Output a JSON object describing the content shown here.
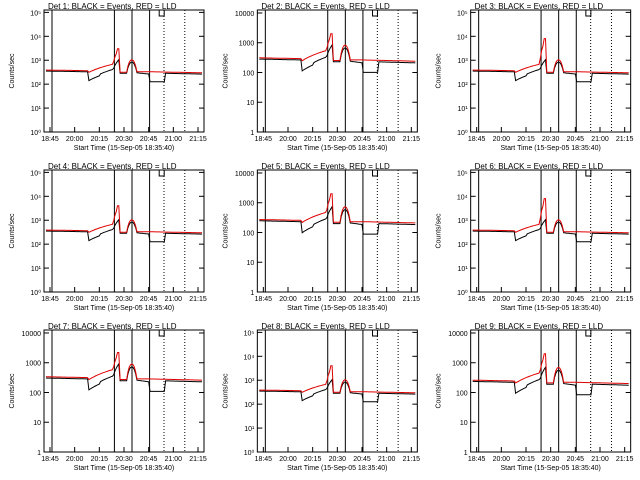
{
  "colors": {
    "events": "#000000",
    "lld": "#e00000",
    "frame": "#000000"
  },
  "xticks": [
    "18:45",
    "20:00",
    "20:15",
    "20:30",
    "20:45",
    "21:00",
    "21:15"
  ],
  "xlabel": "Start Time (15-Sep-05 18:35:40)",
  "ylabel": "Counts/sec",
  "chart_data": [
    {
      "type": "line",
      "title": "Det 1: BLACK = Events, RED = LLD",
      "yscale": "log",
      "yticks": [
        "10⁰",
        "10¹",
        "10²",
        "10³",
        "10⁴",
        "10⁵"
      ],
      "ylim_exp": [
        0,
        5.1
      ],
      "base": 300,
      "peak": 3000,
      "vlines": [
        0.245,
        0.64
      ],
      "series": [
        {
          "name": "Events",
          "color": "#000000"
        },
        {
          "name": "LLD",
          "color": "#e00000"
        }
      ]
    },
    {
      "type": "line",
      "title": "Det 2: BLACK = Events, RED = LLD",
      "yscale": "log",
      "yticks": [
        "1",
        "10",
        "100",
        "1000",
        "10000"
      ],
      "ylim_exp": [
        0,
        4.1
      ],
      "base": 240,
      "peak": 2000,
      "vlines": [
        0.245,
        0.64
      ],
      "series": [
        {
          "name": "Events",
          "color": "#000000"
        },
        {
          "name": "LLD",
          "color": "#e00000"
        }
      ]
    },
    {
      "type": "line",
      "title": "Det 3: BLACK = Events, RED = LLD",
      "yscale": "log",
      "yticks": [
        "10⁰",
        "10¹",
        "10²",
        "10³",
        "10⁴",
        "10⁵"
      ],
      "ylim_exp": [
        0,
        5.1
      ],
      "base": 300,
      "peak": 8000,
      "vlines": [
        0.245,
        0.64
      ],
      "series": [
        {
          "name": "Events",
          "color": "#000000"
        },
        {
          "name": "LLD",
          "color": "#e00000"
        }
      ]
    },
    {
      "type": "line",
      "title": "Det 4: BLACK = Events, RED = LLD",
      "yscale": "log",
      "yticks": [
        "10⁰",
        "10¹",
        "10²",
        "10³",
        "10⁴",
        "10⁵"
      ],
      "ylim_exp": [
        0,
        5.1
      ],
      "base": 300,
      "peak": 4000,
      "vlines": [
        0.245,
        0.64
      ],
      "series": [
        {
          "name": "Events",
          "color": "#000000"
        },
        {
          "name": "LLD",
          "color": "#e00000"
        }
      ]
    },
    {
      "type": "line",
      "title": "Det 5: BLACK = Events, RED = LLD",
      "yscale": "log",
      "yticks": [
        "1",
        "10",
        "100",
        "1000",
        "10000"
      ],
      "ylim_exp": [
        0,
        4.1
      ],
      "base": 210,
      "peak": 2000,
      "vlines": [
        0.245,
        0.64
      ],
      "series": [
        {
          "name": "Events",
          "color": "#000000"
        },
        {
          "name": "LLD",
          "color": "#e00000"
        }
      ]
    },
    {
      "type": "line",
      "title": "Det 6: BLACK = Events, RED = LLD",
      "yscale": "log",
      "yticks": [
        "10⁰",
        "10¹",
        "10²",
        "10³",
        "10⁴",
        "10⁵"
      ],
      "ylim_exp": [
        0,
        5.1
      ],
      "base": 300,
      "peak": 8000,
      "vlines": [
        0.245,
        0.64
      ],
      "series": [
        {
          "name": "Events",
          "color": "#000000"
        },
        {
          "name": "LLD",
          "color": "#e00000"
        }
      ]
    },
    {
      "type": "line",
      "title": "Det 7: BLACK = Events, RED = LLD",
      "yscale": "log",
      "yticks": [
        "1",
        "10",
        "100",
        "1000",
        "10000"
      ],
      "ylim_exp": [
        0,
        4.1
      ],
      "base": 260,
      "peak": 2200,
      "vlines": [
        0.245,
        0.64
      ],
      "series": [
        {
          "name": "Events",
          "color": "#000000"
        },
        {
          "name": "LLD",
          "color": "#e00000"
        }
      ]
    },
    {
      "type": "line",
      "title": "Det 8: BLACK = Events, RED = LLD",
      "yscale": "log",
      "yticks": [
        "10⁰",
        "10¹",
        "10²",
        "10³",
        "10⁴",
        "10⁵"
      ],
      "ylim_exp": [
        0,
        5.1
      ],
      "base": 300,
      "peak": 4000,
      "vlines": [
        0.245,
        0.64
      ],
      "series": [
        {
          "name": "Events",
          "color": "#000000"
        },
        {
          "name": "LLD",
          "color": "#e00000"
        }
      ]
    },
    {
      "type": "line",
      "title": "Det 9: BLACK = Events, RED = LLD",
      "yscale": "log",
      "yticks": [
        "1",
        "10",
        "100",
        "1000",
        "10000"
      ],
      "ylim_exp": [
        0,
        4.1
      ],
      "base": 200,
      "peak": 2000,
      "vlines": [
        0.245,
        0.64
      ],
      "series": [
        {
          "name": "Events",
          "color": "#000000"
        },
        {
          "name": "LLD",
          "color": "#e00000"
        }
      ]
    }
  ]
}
